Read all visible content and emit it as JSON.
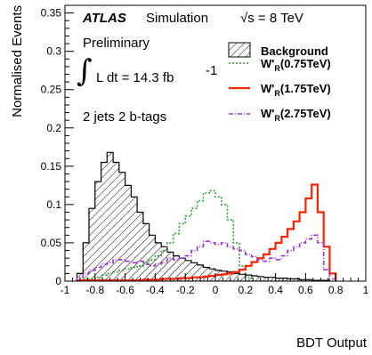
{
  "chart_data": {
    "type": "histogram",
    "xlabel": "BDT Output",
    "ylabel": "Normalised Events",
    "xlim": [
      -1,
      1
    ],
    "ylim": [
      0,
      0.36
    ],
    "x_ticks": [
      -1,
      -0.8,
      -0.6,
      -0.4,
      -0.2,
      0,
      0.2,
      0.4,
      0.6,
      0.8,
      1
    ],
    "x_tick_labels": [
      "-1",
      "-0.8",
      "-0.6",
      "-0.4",
      "-0.2",
      "0",
      "0.2",
      "0.4",
      "0.6",
      "0.8",
      "1"
    ],
    "y_ticks": [
      0,
      0.05,
      0.1,
      0.15,
      0.2,
      0.25,
      0.3,
      0.35
    ],
    "y_tick_labels": [
      "0",
      "0.05",
      "0.1",
      "0.15",
      "0.2",
      "0.25",
      "0.3",
      "0.35"
    ],
    "bin_width": 0.04,
    "annotations": {
      "experiment": "ATLAS",
      "label": "Simulation",
      "energy": "√s = 8 TeV",
      "status": "Preliminary",
      "lumi_prefix": "L dt = 14.3 fb",
      "lumi_exp": "-1",
      "selection": "2 jets 2 b-tags"
    },
    "legend_position": "top-right",
    "series": [
      {
        "name_main": "Background",
        "name_sub": "",
        "name_suffix": "",
        "style": "hatched",
        "color": "#000000",
        "bin_edges": [
          -0.92,
          -0.88,
          -0.84,
          -0.8,
          -0.76,
          -0.72,
          -0.68,
          -0.64,
          -0.6,
          -0.56,
          -0.52,
          -0.48,
          -0.44,
          -0.4,
          -0.36,
          -0.32,
          -0.28,
          -0.24,
          -0.2,
          -0.16,
          -0.12,
          -0.08,
          -0.04,
          0.0,
          0.04,
          0.08,
          0.12,
          0.16,
          0.2,
          0.24,
          0.28,
          0.32,
          0.36,
          0.4,
          0.44,
          0.48,
          0.52,
          0.56,
          0.6,
          0.64,
          0.68,
          0.72,
          0.76
        ],
        "values": [
          0.01,
          0.05,
          0.095,
          0.13,
          0.155,
          0.168,
          0.155,
          0.142,
          0.125,
          0.11,
          0.09,
          0.075,
          0.06,
          0.05,
          0.045,
          0.038,
          0.033,
          0.03,
          0.027,
          0.024,
          0.021,
          0.018,
          0.016,
          0.014,
          0.013,
          0.012,
          0.01,
          0.009,
          0.008,
          0.007,
          0.006,
          0.005,
          0.005,
          0.004,
          0.004,
          0.003,
          0.003,
          0.002,
          0.002,
          0.001,
          0.001,
          0.001
        ]
      },
      {
        "name_main": "W'",
        "name_sub": "R",
        "name_suffix": "(0.75TeV)",
        "style": "dotted",
        "color": "#2e9e2e",
        "bin_edges": [
          -0.88,
          -0.84,
          -0.8,
          -0.76,
          -0.72,
          -0.68,
          -0.64,
          -0.6,
          -0.56,
          -0.52,
          -0.48,
          -0.44,
          -0.4,
          -0.36,
          -0.32,
          -0.28,
          -0.24,
          -0.2,
          -0.16,
          -0.12,
          -0.08,
          -0.04,
          0.0,
          0.04,
          0.08,
          0.12,
          0.16,
          0.2,
          0.24
        ],
        "values": [
          0.002,
          0.003,
          0.005,
          0.008,
          0.01,
          0.012,
          0.014,
          0.016,
          0.018,
          0.02,
          0.024,
          0.028,
          0.033,
          0.04,
          0.05,
          0.062,
          0.075,
          0.085,
          0.095,
          0.105,
          0.115,
          0.118,
          0.11,
          0.1,
          0.08,
          0.05,
          0.02,
          0.005
        ]
      },
      {
        "name_main": "W'",
        "name_sub": "R",
        "name_suffix": "(1.75TeV)",
        "style": "solid",
        "color": "#ff2200",
        "bin_edges": [
          -0.92,
          -0.88,
          -0.84,
          -0.8,
          -0.76,
          -0.72,
          -0.68,
          -0.64,
          -0.6,
          -0.56,
          -0.52,
          -0.48,
          -0.44,
          -0.4,
          -0.36,
          -0.32,
          -0.28,
          -0.24,
          -0.2,
          -0.16,
          -0.12,
          -0.08,
          -0.04,
          0.0,
          0.04,
          0.08,
          0.12,
          0.16,
          0.2,
          0.24,
          0.28,
          0.32,
          0.36,
          0.4,
          0.44,
          0.48,
          0.52,
          0.56,
          0.6,
          0.64,
          0.68,
          0.72,
          0.76,
          0.8
        ],
        "values": [
          0.001,
          0.001,
          0.001,
          0.001,
          0.001,
          0.001,
          0.001,
          0.001,
          0.001,
          0.001,
          0.001,
          0.002,
          0.002,
          0.002,
          0.003,
          0.003,
          0.003,
          0.004,
          0.004,
          0.005,
          0.005,
          0.006,
          0.007,
          0.008,
          0.009,
          0.01,
          0.012,
          0.015,
          0.02,
          0.025,
          0.03,
          0.035,
          0.042,
          0.05,
          0.058,
          0.068,
          0.078,
          0.09,
          0.108,
          0.126,
          0.09,
          0.045,
          0.01
        ]
      },
      {
        "name_main": "W'",
        "name_sub": "R",
        "name_suffix": "(2.75TeV)",
        "style": "dashdot",
        "color": "#9933cc",
        "bin_edges": [
          -0.92,
          -0.88,
          -0.84,
          -0.8,
          -0.76,
          -0.72,
          -0.68,
          -0.64,
          -0.6,
          -0.56,
          -0.52,
          -0.48,
          -0.44,
          -0.4,
          -0.36,
          -0.32,
          -0.28,
          -0.24,
          -0.2,
          -0.16,
          -0.12,
          -0.08,
          -0.04,
          0.0,
          0.04,
          0.08,
          0.12,
          0.16,
          0.2,
          0.24,
          0.28,
          0.32,
          0.36,
          0.4,
          0.44,
          0.48,
          0.52,
          0.56,
          0.6,
          0.64,
          0.68,
          0.72,
          0.76,
          0.8
        ],
        "values": [
          0.005,
          0.01,
          0.014,
          0.018,
          0.022,
          0.024,
          0.028,
          0.028,
          0.026,
          0.024,
          0.026,
          0.022,
          0.02,
          0.022,
          0.024,
          0.03,
          0.028,
          0.03,
          0.033,
          0.04,
          0.045,
          0.052,
          0.05,
          0.048,
          0.05,
          0.045,
          0.042,
          0.04,
          0.035,
          0.032,
          0.028,
          0.026,
          0.03,
          0.028,
          0.033,
          0.04,
          0.045,
          0.05,
          0.055,
          0.06,
          0.05,
          0.015,
          0.003
        ]
      }
    ]
  }
}
